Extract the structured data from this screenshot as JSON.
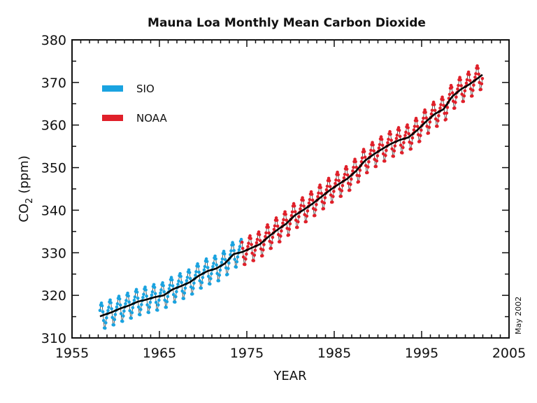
{
  "chart_data": {
    "type": "line",
    "title": "Mauna Loa Monthly Mean Carbon Dioxide",
    "xlabel": "YEAR",
    "ylabel_main": "CO",
    "ylabel_sub": "2",
    "ylabel_unit": "(ppm)",
    "note": "May 2002",
    "xlim": [
      1955,
      2005
    ],
    "ylim": [
      310,
      380
    ],
    "xticks": [
      "1955",
      "1965",
      "1975",
      "1985",
      "1995",
      "2005"
    ],
    "yticks": [
      "310",
      "320",
      "330",
      "340",
      "350",
      "360",
      "370",
      "380"
    ],
    "grid": false,
    "legend_position": "top-left",
    "series": [
      {
        "name": "SIO",
        "color": "#1aa3e0",
        "range": [
          1958.2,
          1974.4
        ]
      },
      {
        "name": "NOAA",
        "color": "#e0202a",
        "range": [
          1974.4,
          2002.0
        ]
      }
    ],
    "trend_color": "#000000",
    "annual_mean_years": [
      1958,
      1959,
      1960,
      1961,
      1962,
      1963,
      1964,
      1965,
      1966,
      1967,
      1968,
      1969,
      1970,
      1971,
      1972,
      1973,
      1974,
      1975,
      1976,
      1977,
      1978,
      1979,
      1980,
      1981,
      1982,
      1983,
      1984,
      1985,
      1986,
      1987,
      1988,
      1989,
      1990,
      1991,
      1992,
      1993,
      1994,
      1995,
      1996,
      1997,
      1998,
      1999,
      2000,
      2001
    ],
    "annual_mean_ppm": [
      315.3,
      316.0,
      316.9,
      317.6,
      318.5,
      319.0,
      319.6,
      320.0,
      321.4,
      322.2,
      323.1,
      324.6,
      325.7,
      326.3,
      327.5,
      329.7,
      330.2,
      331.1,
      332.0,
      333.8,
      335.4,
      336.8,
      338.8,
      340.1,
      341.5,
      343.1,
      344.7,
      346.1,
      347.4,
      349.2,
      351.6,
      353.1,
      354.4,
      355.6,
      356.5,
      357.1,
      358.8,
      360.8,
      362.6,
      363.7,
      366.7,
      368.4,
      369.6,
      371.1
    ],
    "seasonal_offset_ppm": [
      0.0,
      0.7,
      1.4,
      2.6,
      3.0,
      2.3,
      0.8,
      -1.3,
      -3.1,
      -3.2,
      -2.0,
      -0.9
    ]
  }
}
